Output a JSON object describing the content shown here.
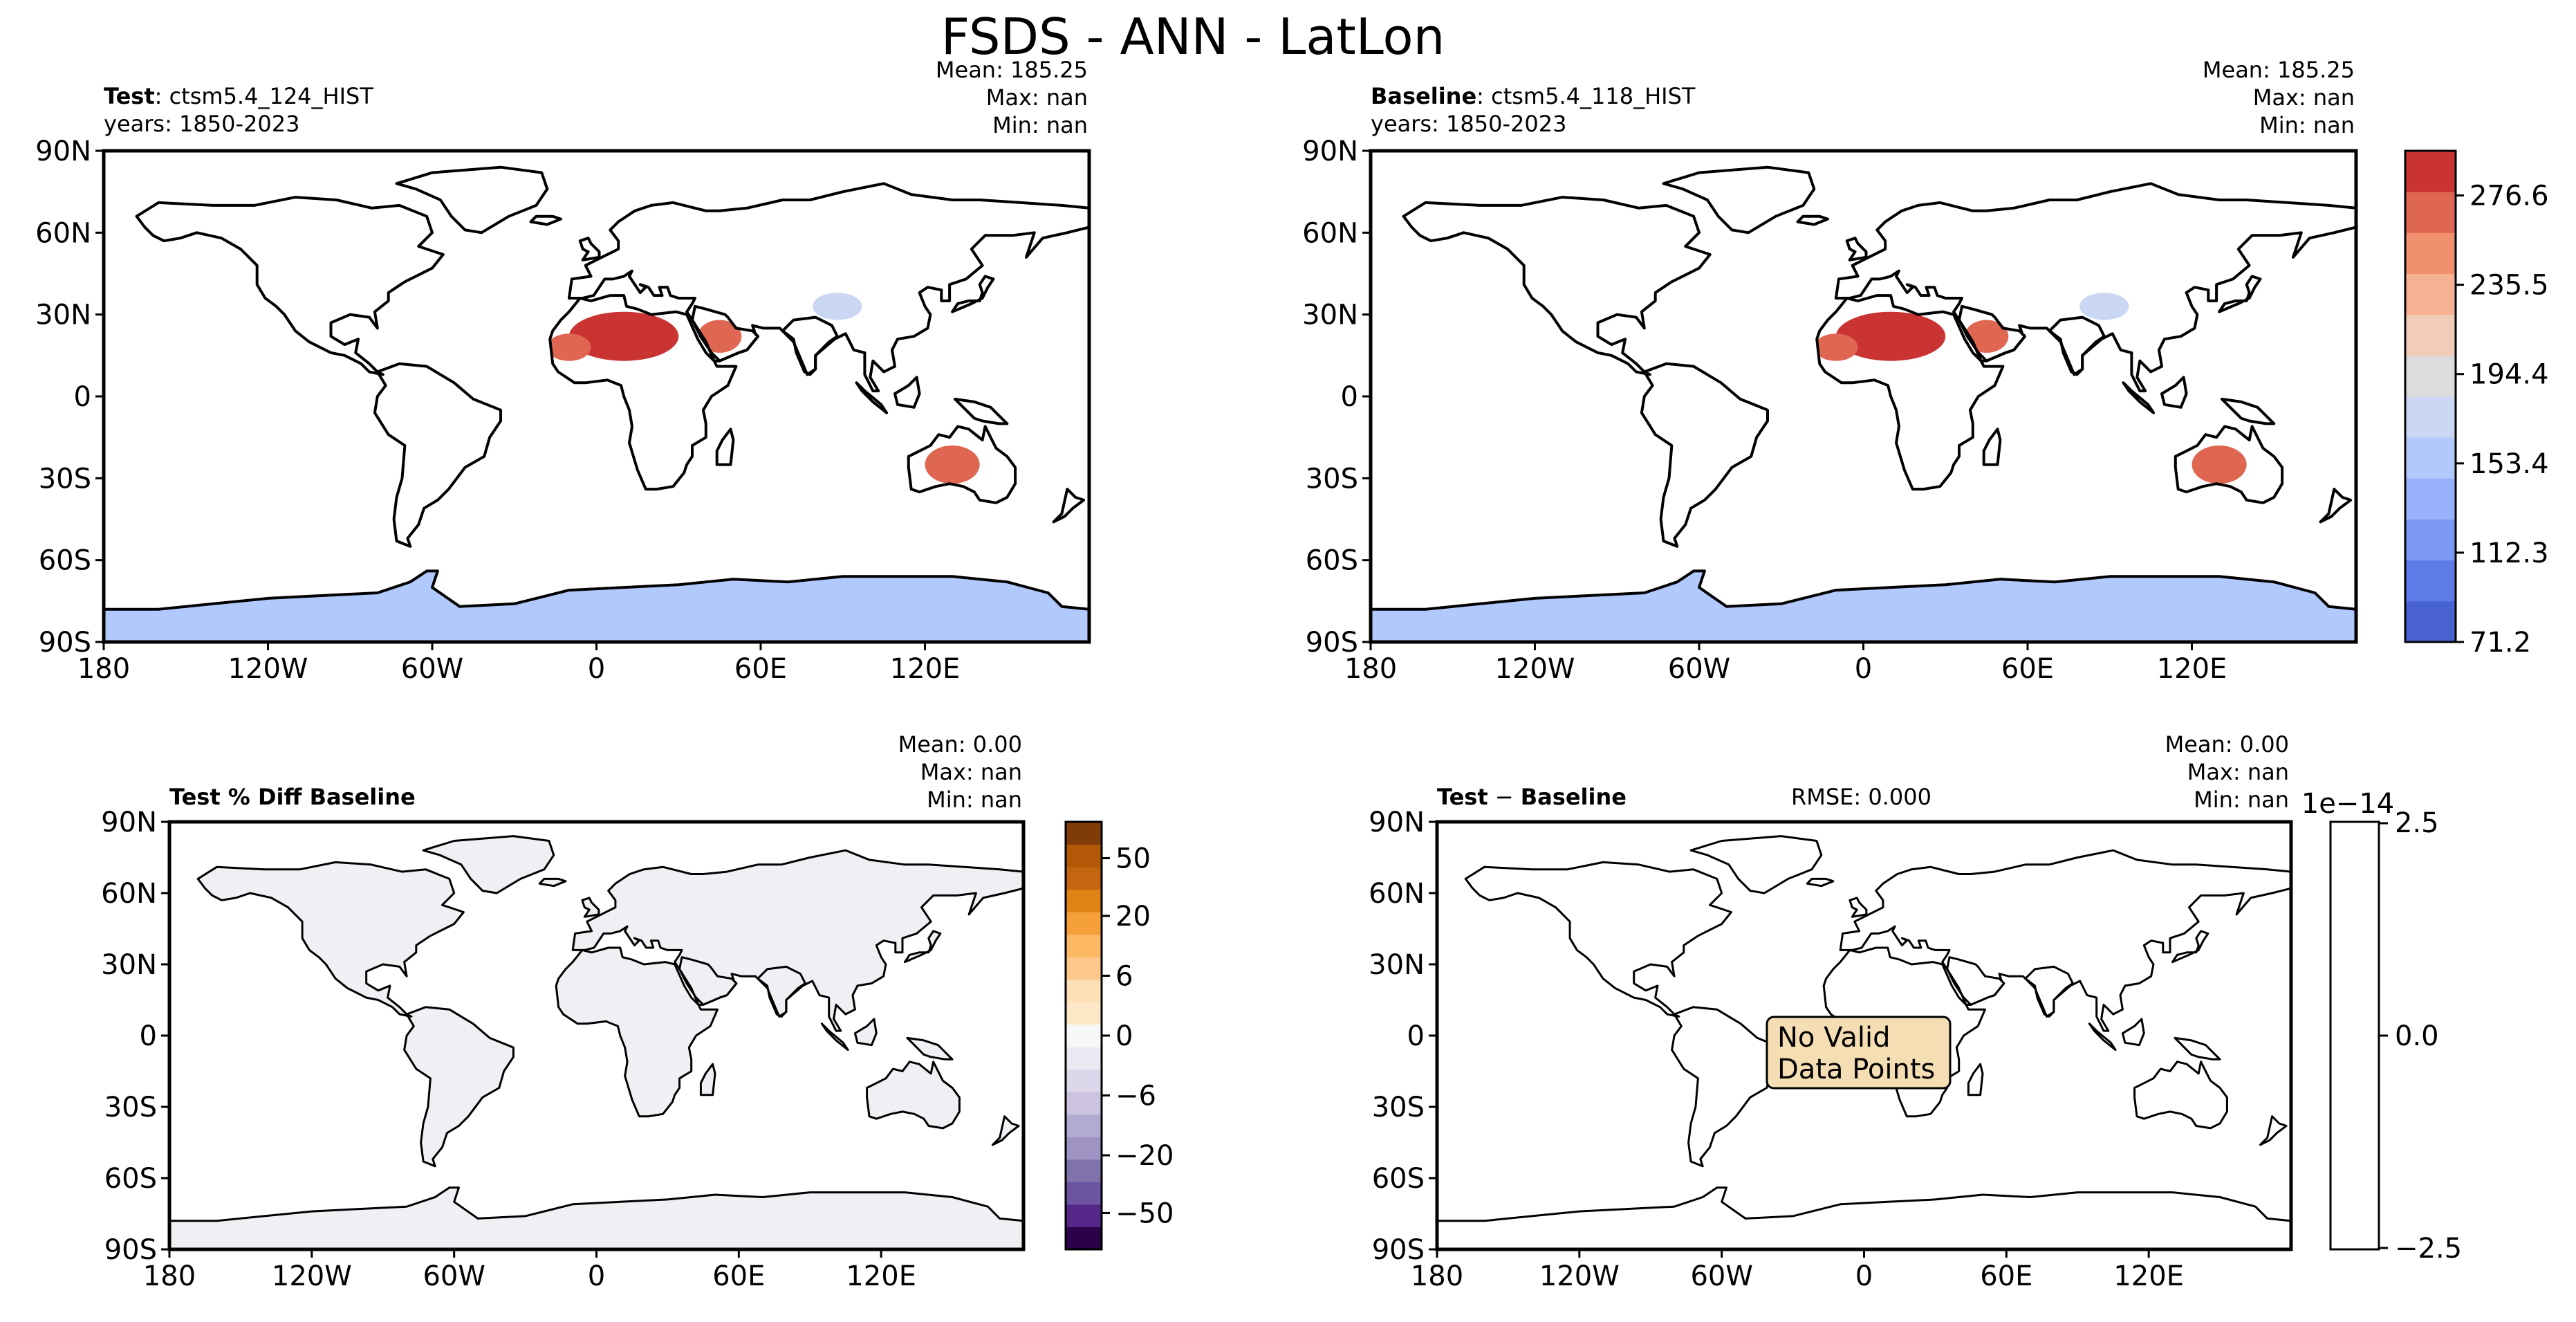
{
  "figure": {
    "title": "FSDS - ANN - LatLon"
  },
  "panels": {
    "test": {
      "label_bold": "Test",
      "label_rest": ": ctsm5.4_124_HIST",
      "years": "years: 1850-2023",
      "mean": "Mean: 185.25",
      "max": "Max:   nan",
      "min": "Min:   nan"
    },
    "baseline": {
      "label_bold": "Baseline",
      "label_rest": ": ctsm5.4_118_HIST",
      "years": "years: 1850-2023",
      "mean": "Mean: 185.25",
      "max": "Max:   nan",
      "min": "Min:   nan"
    },
    "pctdiff": {
      "label": "Test % Diff Baseline",
      "mean": "Mean:  0.00",
      "max": "Max:   nan",
      "min": "Min:   nan"
    },
    "diff": {
      "label_bold": "Test",
      "label_mid": " − ",
      "label_bold2": "Baseline",
      "rmse": "RMSE: 0.000",
      "mean": "Mean:  0.00",
      "max": "Max:   nan",
      "min": "Min:   nan",
      "no_data": [
        "No Valid",
        "Data Points"
      ]
    }
  },
  "axes": {
    "lat_ticks": [
      "90N",
      "60N",
      "30N",
      "0",
      "30S",
      "60S",
      "90S"
    ],
    "lon_ticks": [
      "180",
      "120W",
      "60W",
      "0",
      "60E",
      "120E"
    ]
  },
  "chart_data": [
    {
      "type": "heatmap",
      "name": "Test",
      "variable": "FSDS",
      "x_range": [
        -180,
        180
      ],
      "y_range": [
        -90,
        90
      ],
      "mean": 185.25,
      "max": "nan",
      "min": "nan"
    },
    {
      "type": "heatmap",
      "name": "Baseline",
      "variable": "FSDS",
      "x_range": [
        -180,
        180
      ],
      "y_range": [
        -90,
        90
      ],
      "mean": 185.25,
      "max": "nan",
      "min": "nan",
      "colorbar": {
        "ticks": [
          "276.6",
          "235.5",
          "194.4",
          "153.4",
          "112.3",
          "71.2"
        ],
        "range": [
          71.2,
          297.1
        ]
      }
    },
    {
      "type": "heatmap",
      "name": "Test % Diff Baseline",
      "x_range": [
        -180,
        180
      ],
      "y_range": [
        -90,
        90
      ],
      "mean": 0.0,
      "max": "nan",
      "min": "nan",
      "colorbar": {
        "ticks": [
          "50",
          "20",
          "6",
          "0",
          "−6",
          "−20",
          "−50"
        ]
      }
    },
    {
      "type": "heatmap",
      "name": "Test − Baseline",
      "x_range": [
        -180,
        180
      ],
      "y_range": [
        -90,
        90
      ],
      "mean": 0.0,
      "max": "nan",
      "min": "nan",
      "rmse": 0.0,
      "colorbar": {
        "ticks": [
          "2.5",
          "0.0",
          "−2.5"
        ],
        "offset": "1e−14"
      }
    }
  ],
  "colors": {
    "main_scale": [
      "#4a63d2",
      "#5d7ce8",
      "#7b99f3",
      "#97b2fb",
      "#b1c9fd",
      "#c9d7f2",
      "#dcdcdc",
      "#f1cdb9",
      "#f6b092",
      "#f1906e",
      "#df6650",
      "#c93332"
    ],
    "pct_scale": [
      "#2d004b",
      "#542788",
      "#6c54a3",
      "#8073ac",
      "#9e93c2",
      "#b2abd2",
      "#cbc3e0",
      "#dcd7ea",
      "#ece9f3",
      "#f7f7f7",
      "#fde7c6",
      "#fee0b6",
      "#fdc88a",
      "#fdb863",
      "#f5a03b",
      "#e08214",
      "#c46510",
      "#b35806",
      "#7f3b08"
    ],
    "land_neutral": "#eff0f4",
    "no_data_box": "#f5deb3"
  }
}
